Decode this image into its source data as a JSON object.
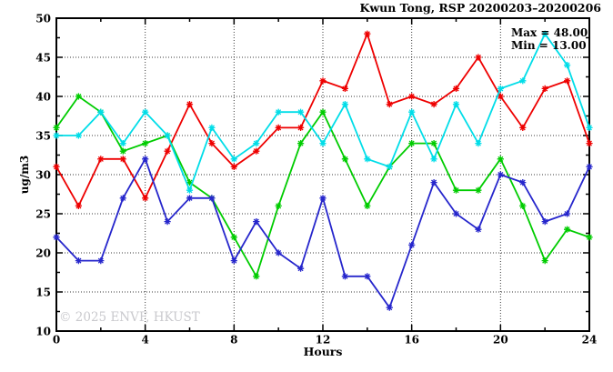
{
  "title": "Kwun Tong, RSP 20200203–20200206",
  "annotations": {
    "max": "Max = 48.00",
    "min": "Min = 13.00"
  },
  "watermark": "© 2025 ENVF, HKUST",
  "colors": {
    "frame": "#000000",
    "grid": "#3a3a3a",
    "watermark_text": "#c9c9cd",
    "series_red": "#ee0000",
    "series_green": "#00cc00",
    "series_blue": "#2626cc",
    "series_cyan": "#00dde8"
  },
  "chart_data": {
    "type": "line",
    "title": "Kwun Tong, RSP 20200203–20200206",
    "xlabel": "Hours",
    "ylabel": "ug/m3",
    "xlim": [
      0,
      24
    ],
    "ylim": [
      10,
      50
    ],
    "x_major_ticks": [
      0,
      4,
      8,
      12,
      16,
      20,
      24
    ],
    "x_minor_ticks": [
      2,
      6,
      10,
      14,
      18,
      22
    ],
    "y_major_ticks": [
      10,
      15,
      20,
      25,
      30,
      35,
      40,
      45,
      50
    ],
    "y_minor_ticks": [
      12.5,
      17.5,
      22.5,
      27.5,
      32.5,
      37.5,
      42.5,
      47.5
    ],
    "grid_x_values": [
      4,
      8,
      12,
      16,
      20
    ],
    "grid_y_values": [
      15,
      20,
      25,
      30,
      35,
      40,
      45
    ],
    "grid_style": "dotted",
    "legend": "none",
    "marker": "asterisk",
    "max_value": 48.0,
    "min_value": 13.0,
    "x": [
      0,
      1,
      2,
      3,
      4,
      5,
      6,
      7,
      8,
      9,
      10,
      11,
      12,
      13,
      14,
      15,
      16,
      17,
      18,
      19,
      20,
      21,
      22,
      23,
      24
    ],
    "series": [
      {
        "name": "red",
        "color": "#ee0000",
        "values": [
          31,
          26,
          32,
          32,
          27,
          33,
          39,
          34,
          31,
          33,
          36,
          36,
          42,
          41,
          48,
          39,
          40,
          39,
          41,
          45,
          40,
          36,
          41,
          42,
          34
        ]
      },
      {
        "name": "green",
        "color": "#00cc00",
        "values": [
          36,
          40,
          38,
          33,
          34,
          35,
          29,
          27,
          22,
          17,
          26,
          34,
          38,
          32,
          26,
          31,
          34,
          34,
          28,
          28,
          32,
          26,
          19,
          23,
          22
        ]
      },
      {
        "name": "blue",
        "color": "#2626cc",
        "values": [
          22,
          19,
          19,
          27,
          32,
          24,
          27,
          27,
          19,
          24,
          20,
          18,
          27,
          17,
          17,
          13,
          21,
          29,
          25,
          23,
          30,
          29,
          24,
          25,
          31
        ]
      },
      {
        "name": "cyan",
        "color": "#00dde8",
        "values": [
          35,
          35,
          38,
          34,
          38,
          35,
          28,
          36,
          32,
          34,
          38,
          38,
          34,
          39,
          32,
          31,
          38,
          32,
          39,
          34,
          41,
          42,
          48,
          44,
          36
        ]
      }
    ]
  }
}
